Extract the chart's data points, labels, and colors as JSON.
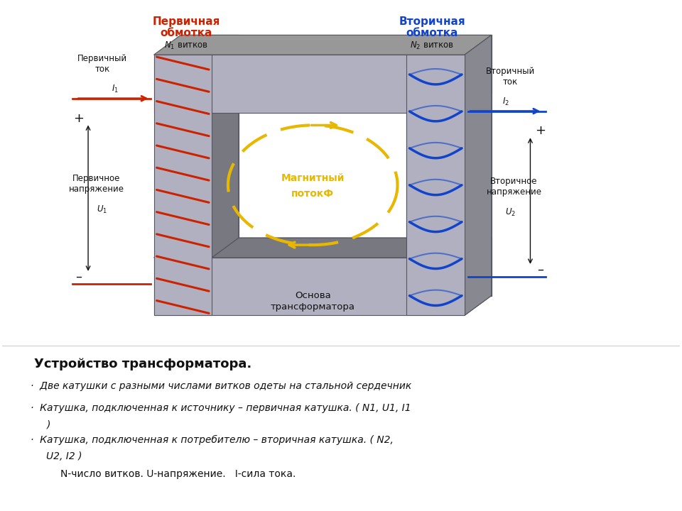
{
  "bg_color": "#ffffff",
  "core_front": "#b0b0c0",
  "core_top": "#989898",
  "core_right": "#888890",
  "core_inner": "#787880",
  "winding_red": "#cc2200",
  "winding_blue": "#1144cc",
  "magnetic_yellow": "#e8b800",
  "text_red": "#cc2200",
  "text_blue": "#1144cc",
  "text_black": "#111111",
  "title_bold": "Устройство трансформатора.",
  "bullet1": "Две катушки с разными числами витков одеты на стальной сердечник",
  "bullet2_1": "Катушка, подключенная к источнику – первичная катушка. ( N1, U1, I1",
  "bullet2_2": ")",
  "bullet3_1": "Катушка, подключенная к потребителю – вторичная катушка. ( N2,",
  "bullet3_2": "U2, I2 )",
  "bullet4": "N-число витков. U-напряжение.   I-сила тока."
}
